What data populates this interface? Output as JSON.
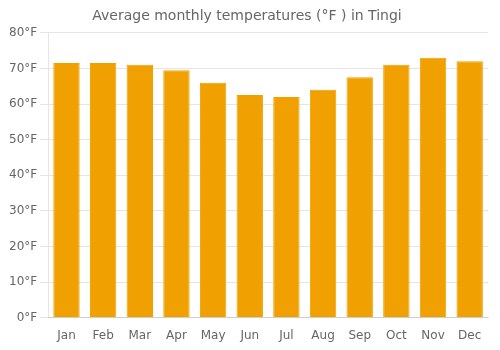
{
  "chart_data": {
    "type": "bar",
    "title": "Average monthly temperatures (°F ) in Tingi",
    "categories": [
      "Jan",
      "Feb",
      "Mar",
      "Apr",
      "May",
      "Jun",
      "Jul",
      "Aug",
      "Sep",
      "Oct",
      "Nov",
      "Dec"
    ],
    "values": [
      71.5,
      71.5,
      71.0,
      69.5,
      66.0,
      62.5,
      62.0,
      64.0,
      67.5,
      71.0,
      73.0,
      72.0
    ],
    "color": "#F0A000",
    "ylim": [
      0,
      80
    ],
    "yticks": [
      {
        "value": 0,
        "label": "0°F"
      },
      {
        "value": 10,
        "label": "10°F"
      },
      {
        "value": 20,
        "label": "20°F"
      },
      {
        "value": 30,
        "label": "30°F"
      },
      {
        "value": 40,
        "label": "40°F"
      },
      {
        "value": 50,
        "label": "50°F"
      },
      {
        "value": 60,
        "label": "60°F"
      },
      {
        "value": 70,
        "label": "70°F"
      },
      {
        "value": 80,
        "label": "80°F"
      }
    ],
    "grid": true
  }
}
